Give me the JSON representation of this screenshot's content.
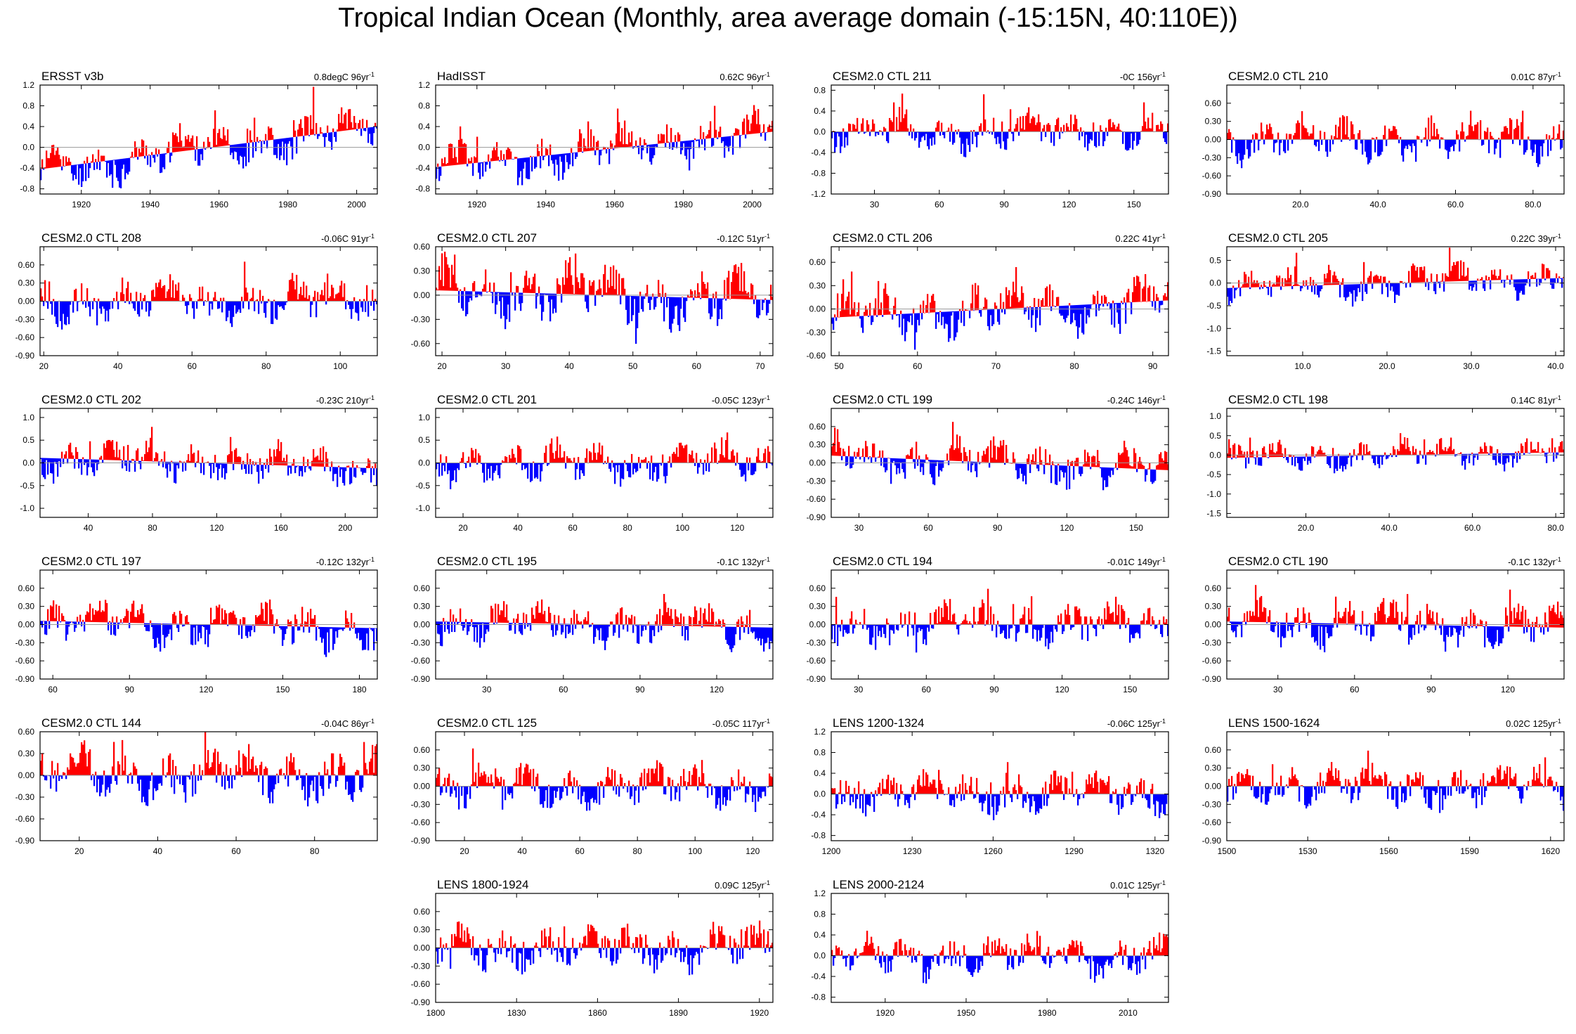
{
  "figure": {
    "title": "Tropical Indian Ocean (Monthly, area average domain (-15:15N, 40:110E))",
    "colors": {
      "positive": "#ff0000",
      "negative": "#0000ff",
      "background": "#ffffff",
      "axis": "#000000",
      "zero_line": "#9a9a9a"
    }
  },
  "chart_data": [
    {
      "type": "bar",
      "name": "ERSST v3b",
      "trend": "0.8degC 96yr",
      "trend_suffix": "-1",
      "xlim": [
        1908,
        2006
      ],
      "ylim": [
        -0.9,
        1.2
      ],
      "xticks": [
        1920,
        1940,
        1960,
        1980,
        2000
      ],
      "xtick_labels": [
        "1920",
        "1940",
        "1960",
        "1980",
        "2000"
      ],
      "yticks": [
        -0.8,
        -0.4,
        0,
        0.4,
        0.8,
        1.2
      ],
      "ytick_labels": [
        "-0.8",
        "-0.4",
        "0.0",
        "0.4",
        "0.8",
        "1.2"
      ],
      "baseline": "linear",
      "base_start": -0.42,
      "base_end": 0.4,
      "amp": 0.35,
      "seed": 11,
      "grid": false
    },
    {
      "type": "bar",
      "name": "HadISST",
      "trend": "0.62C 96yr",
      "trend_suffix": "-1",
      "xlim": [
        1908,
        2006
      ],
      "ylim": [
        -0.9,
        1.2
      ],
      "xticks": [
        1920,
        1940,
        1960,
        1980,
        2000
      ],
      "xtick_labels": [
        "1920",
        "1940",
        "1960",
        "1980",
        "2000"
      ],
      "yticks": [
        -0.8,
        -0.4,
        0,
        0.4,
        0.8,
        1.2
      ],
      "ytick_labels": [
        "-0.8",
        "-0.4",
        "0.0",
        "0.4",
        "0.8",
        "1.2"
      ],
      "baseline": "linear",
      "base_start": -0.38,
      "base_end": 0.3,
      "amp": 0.35,
      "seed": 12,
      "grid": false
    },
    {
      "type": "bar",
      "name": "CESM2.0 CTL 211",
      "trend": "-0C 156yr",
      "trend_suffix": "-1",
      "xlim": [
        10,
        166
      ],
      "ylim": [
        -1.2,
        0.9
      ],
      "xticks": [
        30,
        60,
        90,
        120,
        150
      ],
      "xtick_labels": [
        "30",
        "60",
        "90",
        "120",
        "150"
      ],
      "yticks": [
        -1.2,
        -0.8,
        -0.4,
        0,
        0.4,
        0.8
      ],
      "ytick_labels": [
        "-1.2",
        "-0.8",
        "-0.4",
        "0.0",
        "0.4",
        "0.8"
      ],
      "baseline": "zero",
      "amp": 0.3,
      "seed": 13,
      "grid": false
    },
    {
      "type": "bar",
      "name": "CESM2.0 CTL 210",
      "trend": "0.01C 87yr",
      "trend_suffix": "-1",
      "xlim": [
        1,
        88
      ],
      "ylim": [
        -0.9,
        0.9
      ],
      "xticks": [
        20,
        40,
        60,
        80
      ],
      "xtick_labels": [
        "20.0",
        "40.0",
        "60.0",
        "80.0"
      ],
      "yticks": [
        -0.9,
        -0.6,
        -0.3,
        0,
        0.3,
        0.6
      ],
      "ytick_labels": [
        "-0.90",
        "-0.60",
        "-0.30",
        "0.00",
        "0.30",
        "0.60"
      ],
      "baseline": "zero",
      "amp": 0.3,
      "seed": 14,
      "grid": false
    },
    {
      "type": "bar",
      "name": "CESM2.0 CTL 208",
      "trend": "-0.06C 91yr",
      "trend_suffix": "-1",
      "xlim": [
        19,
        110
      ],
      "ylim": [
        -0.9,
        0.9
      ],
      "xticks": [
        20,
        40,
        60,
        80,
        100
      ],
      "xtick_labels": [
        "20",
        "40",
        "60",
        "80",
        "100"
      ],
      "yticks": [
        -0.9,
        -0.6,
        -0.3,
        0,
        0.3,
        0.6
      ],
      "ytick_labels": [
        "-0.90",
        "-0.60",
        "-0.30",
        "0.00",
        "0.30",
        "0.60"
      ],
      "baseline": "zero",
      "amp": 0.3,
      "seed": 15,
      "grid": false
    },
    {
      "type": "bar",
      "name": "CESM2.0 CTL 207",
      "trend": "-0.12C 51yr",
      "trend_suffix": "-1",
      "xlim": [
        19,
        72
      ],
      "ylim": [
        -0.75,
        0.6
      ],
      "xticks": [
        20,
        30,
        40,
        50,
        60,
        70
      ],
      "xtick_labels": [
        "20",
        "30",
        "40",
        "50",
        "60",
        "70"
      ],
      "yticks": [
        -0.6,
        -0.3,
        0,
        0.3,
        0.6
      ],
      "ytick_labels": [
        "-0.60",
        "-0.30",
        "0.00",
        "0.30",
        "0.60"
      ],
      "baseline": "linear",
      "base_start": 0.06,
      "base_end": -0.06,
      "amp": 0.3,
      "seed": 16,
      "grid": false
    },
    {
      "type": "bar",
      "name": "CESM2.0 CTL 206",
      "trend": "0.22C 41yr",
      "trend_suffix": "-1",
      "xlim": [
        49,
        92
      ],
      "ylim": [
        -0.6,
        0.8
      ],
      "xticks": [
        50,
        60,
        70,
        80,
        90
      ],
      "xtick_labels": [
        "50",
        "60",
        "70",
        "80",
        "90"
      ],
      "yticks": [
        -0.6,
        -0.3,
        0,
        0.3,
        0.6
      ],
      "ytick_labels": [
        "-0.60",
        "-0.30",
        "0.00",
        "0.30",
        "0.60"
      ],
      "baseline": "linear",
      "base_start": -0.11,
      "base_end": 0.11,
      "amp": 0.28,
      "seed": 17,
      "grid": false
    },
    {
      "type": "bar",
      "name": "CESM2.0 CTL 205",
      "trend": "0.22C 39yr",
      "trend_suffix": "-1",
      "xlim": [
        1,
        41
      ],
      "ylim": [
        -1.6,
        0.8
      ],
      "xticks": [
        10,
        20,
        30,
        40
      ],
      "xtick_labels": [
        "10.0",
        "20.0",
        "30.0",
        "40.0"
      ],
      "yticks": [
        -1.5,
        -1.0,
        -0.5,
        0,
        0.5
      ],
      "ytick_labels": [
        "-1.5",
        "-1.0",
        "-0.5",
        "0.0",
        "0.5"
      ],
      "baseline": "linear",
      "base_start": -0.11,
      "base_end": 0.11,
      "amp": 0.3,
      "seed": 18,
      "grid": false
    },
    {
      "type": "bar",
      "name": "CESM2.0 CTL 202",
      "trend": "-0.23C 210yr",
      "trend_suffix": "-1",
      "xlim": [
        10,
        220
      ],
      "ylim": [
        -1.2,
        1.2
      ],
      "xticks": [
        40,
        80,
        120,
        160,
        200
      ],
      "xtick_labels": [
        "40",
        "80",
        "120",
        "160",
        "200"
      ],
      "yticks": [
        -1.0,
        -0.5,
        0,
        0.5,
        1.0
      ],
      "ytick_labels": [
        "-1.0",
        "-0.5",
        "0.0",
        "0.5",
        "1.0"
      ],
      "baseline": "linear",
      "base_start": 0.11,
      "base_end": -0.12,
      "amp": 0.35,
      "seed": 19,
      "grid": false
    },
    {
      "type": "bar",
      "name": "CESM2.0 CTL 201",
      "trend": "-0.05C 123yr",
      "trend_suffix": "-1",
      "xlim": [
        10,
        133
      ],
      "ylim": [
        -1.2,
        1.2
      ],
      "xticks": [
        20,
        40,
        60,
        80,
        100,
        120
      ],
      "xtick_labels": [
        "20",
        "40",
        "60",
        "80",
        "100",
        "120"
      ],
      "yticks": [
        -1.0,
        -0.5,
        0,
        0.5,
        1.0
      ],
      "ytick_labels": [
        "-1.0",
        "-0.5",
        "0.0",
        "0.5",
        "1.0"
      ],
      "baseline": "zero",
      "amp": 0.35,
      "seed": 20,
      "grid": false
    },
    {
      "type": "bar",
      "name": "CESM2.0 CTL 199",
      "trend": "-0.24C 146yr",
      "trend_suffix": "-1",
      "xlim": [
        18,
        164
      ],
      "ylim": [
        -0.9,
        0.9
      ],
      "xticks": [
        30,
        60,
        90,
        120,
        150
      ],
      "xtick_labels": [
        "30",
        "60",
        "90",
        "120",
        "150"
      ],
      "yticks": [
        -0.9,
        -0.6,
        -0.3,
        0,
        0.3,
        0.6
      ],
      "ytick_labels": [
        "-0.90",
        "-0.60",
        "-0.30",
        "0.00",
        "0.30",
        "0.60"
      ],
      "baseline": "linear",
      "base_start": 0.12,
      "base_end": -0.12,
      "amp": 0.3,
      "seed": 21,
      "grid": false
    },
    {
      "type": "bar",
      "name": "CESM2.0 CTL 198",
      "trend": "0.14C 81yr",
      "trend_suffix": "-1",
      "xlim": [
        1,
        82
      ],
      "ylim": [
        -1.6,
        1.2
      ],
      "xticks": [
        20,
        40,
        60,
        80
      ],
      "xtick_labels": [
        "20.0",
        "40.0",
        "60.0",
        "80.0"
      ],
      "yticks": [
        -1.5,
        -1.0,
        -0.5,
        0,
        0.5,
        1.0
      ],
      "ytick_labels": [
        "-1.5",
        "-1.0",
        "-0.5",
        "0.0",
        "0.5",
        "1.0"
      ],
      "baseline": "linear",
      "base_start": -0.07,
      "base_end": 0.07,
      "amp": 0.3,
      "seed": 22,
      "grid": false
    },
    {
      "type": "bar",
      "name": "CESM2.0 CTL 197",
      "trend": "-0.12C 132yr",
      "trend_suffix": "-1",
      "xlim": [
        55,
        187
      ],
      "ylim": [
        -0.9,
        0.9
      ],
      "xticks": [
        60,
        90,
        120,
        150,
        180
      ],
      "xtick_labels": [
        "60",
        "90",
        "120",
        "150",
        "180"
      ],
      "yticks": [
        -0.9,
        -0.6,
        -0.3,
        0,
        0.3,
        0.6
      ],
      "ytick_labels": [
        "-0.90",
        "-0.60",
        "-0.30",
        "0.00",
        "0.30",
        "0.60"
      ],
      "baseline": "linear",
      "base_start": 0.06,
      "base_end": -0.06,
      "amp": 0.3,
      "seed": 23,
      "grid": false
    },
    {
      "type": "bar",
      "name": "CESM2.0 CTL 195",
      "trend": "-0.1C 132yr",
      "trend_suffix": "-1",
      "xlim": [
        10,
        142
      ],
      "ylim": [
        -0.9,
        0.9
      ],
      "xticks": [
        30,
        60,
        90,
        120
      ],
      "xtick_labels": [
        "30",
        "60",
        "90",
        "120"
      ],
      "yticks": [
        -0.9,
        -0.6,
        -0.3,
        0,
        0.3,
        0.6
      ],
      "ytick_labels": [
        "-0.90",
        "-0.60",
        "-0.30",
        "0.00",
        "0.30",
        "0.60"
      ],
      "baseline": "linear",
      "base_start": 0.05,
      "base_end": -0.05,
      "amp": 0.3,
      "seed": 24,
      "grid": false
    },
    {
      "type": "bar",
      "name": "CESM2.0 CTL 194",
      "trend": "-0.01C 149yr",
      "trend_suffix": "-1",
      "xlim": [
        18,
        167
      ],
      "ylim": [
        -0.9,
        0.9
      ],
      "xticks": [
        30,
        60,
        90,
        120,
        150
      ],
      "xtick_labels": [
        "30",
        "60",
        "90",
        "120",
        "150"
      ],
      "yticks": [
        -0.9,
        -0.6,
        -0.3,
        0,
        0.3,
        0.6
      ],
      "ytick_labels": [
        "-0.90",
        "-0.60",
        "-0.30",
        "0.00",
        "0.30",
        "0.60"
      ],
      "baseline": "zero",
      "amp": 0.3,
      "seed": 25,
      "grid": false
    },
    {
      "type": "bar",
      "name": "CESM2.0 CTL 190",
      "trend": "-0.1C 132yr",
      "trend_suffix": "-1",
      "xlim": [
        10,
        142
      ],
      "ylim": [
        -0.9,
        0.9
      ],
      "xticks": [
        30,
        60,
        90,
        120
      ],
      "xtick_labels": [
        "30",
        "60",
        "90",
        "120"
      ],
      "yticks": [
        -0.9,
        -0.6,
        -0.3,
        0,
        0.3,
        0.6
      ],
      "ytick_labels": [
        "-0.90",
        "-0.60",
        "-0.30",
        "0.00",
        "0.30",
        "0.60"
      ],
      "baseline": "linear",
      "base_start": 0.05,
      "base_end": -0.05,
      "amp": 0.3,
      "seed": 26,
      "grid": false
    },
    {
      "type": "bar",
      "name": "CESM2.0 CTL 144",
      "trend": "-0.04C 86yr",
      "trend_suffix": "-1",
      "xlim": [
        10,
        96
      ],
      "ylim": [
        -0.9,
        0.6
      ],
      "xticks": [
        20,
        40,
        60,
        80
      ],
      "xtick_labels": [
        "20",
        "40",
        "60",
        "80"
      ],
      "yticks": [
        -0.9,
        -0.6,
        -0.3,
        0,
        0.3,
        0.6
      ],
      "ytick_labels": [
        "-0.90",
        "-0.60",
        "-0.30",
        "0.00",
        "0.30",
        "0.60"
      ],
      "baseline": "zero",
      "amp": 0.3,
      "seed": 27,
      "grid": false
    },
    {
      "type": "bar",
      "name": "CESM2.0 CTL 125",
      "trend": "-0.05C 117yr",
      "trend_suffix": "-1",
      "xlim": [
        10,
        127
      ],
      "ylim": [
        -0.9,
        0.9
      ],
      "xticks": [
        20,
        40,
        60,
        80,
        100,
        120
      ],
      "xtick_labels": [
        "20",
        "40",
        "60",
        "80",
        "100",
        "120"
      ],
      "yticks": [
        -0.9,
        -0.6,
        -0.3,
        0,
        0.3,
        0.6
      ],
      "ytick_labels": [
        "-0.90",
        "-0.60",
        "-0.30",
        "0.00",
        "0.30",
        "0.60"
      ],
      "baseline": "zero",
      "amp": 0.3,
      "seed": 28,
      "grid": false
    },
    {
      "type": "bar",
      "name": "LENS 1200-1324",
      "trend": "-0.06C 125yr",
      "trend_suffix": "-1",
      "xlim": [
        1200,
        1325
      ],
      "ylim": [
        -0.9,
        1.2
      ],
      "xticks": [
        1200,
        1230,
        1260,
        1290,
        1320
      ],
      "xtick_labels": [
        "1200",
        "1230",
        "1260",
        "1290",
        "1320"
      ],
      "yticks": [
        -0.8,
        -0.4,
        0,
        0.4,
        0.8,
        1.2
      ],
      "ytick_labels": [
        "-0.8",
        "-0.4",
        "0.0",
        "0.4",
        "0.8",
        "1.2"
      ],
      "baseline": "zero",
      "amp": 0.32,
      "seed": 29,
      "grid": false
    },
    {
      "type": "bar",
      "name": "LENS 1500-1624",
      "trend": "0.02C 125yr",
      "trend_suffix": "-1",
      "xlim": [
        1500,
        1625
      ],
      "ylim": [
        -0.9,
        0.9
      ],
      "xticks": [
        1500,
        1530,
        1560,
        1590,
        1620
      ],
      "xtick_labels": [
        "1500",
        "1530",
        "1560",
        "1590",
        "1620"
      ],
      "yticks": [
        -0.9,
        -0.6,
        -0.3,
        0,
        0.3,
        0.6
      ],
      "ytick_labels": [
        "-0.90",
        "-0.60",
        "-0.30",
        "0.00",
        "0.30",
        "0.60"
      ],
      "baseline": "zero",
      "amp": 0.3,
      "seed": 30,
      "grid": false
    },
    {
      "type": "bar",
      "name": "LENS 1800-1924",
      "trend": "0.09C 125yr",
      "trend_suffix": "-1",
      "xlim": [
        1800,
        1925
      ],
      "ylim": [
        -0.9,
        0.9
      ],
      "xticks": [
        1800,
        1830,
        1860,
        1890,
        1920
      ],
      "xtick_labels": [
        "1800",
        "1830",
        "1860",
        "1890",
        "1920"
      ],
      "yticks": [
        -0.9,
        -0.6,
        -0.3,
        0,
        0.3,
        0.6
      ],
      "ytick_labels": [
        "-0.90",
        "-0.60",
        "-0.30",
        "0.00",
        "0.30",
        "0.60"
      ],
      "baseline": "zero",
      "amp": 0.3,
      "seed": 31,
      "grid": false
    },
    {
      "type": "bar",
      "name": "LENS 2000-2124",
      "trend": "0.01C 125yr",
      "trend_suffix": "-1",
      "xlim": [
        1900,
        2025
      ],
      "ylim": [
        -0.9,
        1.2
      ],
      "xticks": [
        1920,
        1950,
        1980,
        2010
      ],
      "xtick_labels": [
        "1920",
        "1950",
        "1980",
        "2010"
      ],
      "yticks": [
        -0.8,
        -0.4,
        0,
        0.4,
        0.8,
        1.2
      ],
      "ytick_labels": [
        "-0.8",
        "-0.4",
        "0.0",
        "0.4",
        "0.8",
        "1.2"
      ],
      "baseline": "zero",
      "amp": 0.32,
      "seed": 32,
      "grid": false
    }
  ]
}
